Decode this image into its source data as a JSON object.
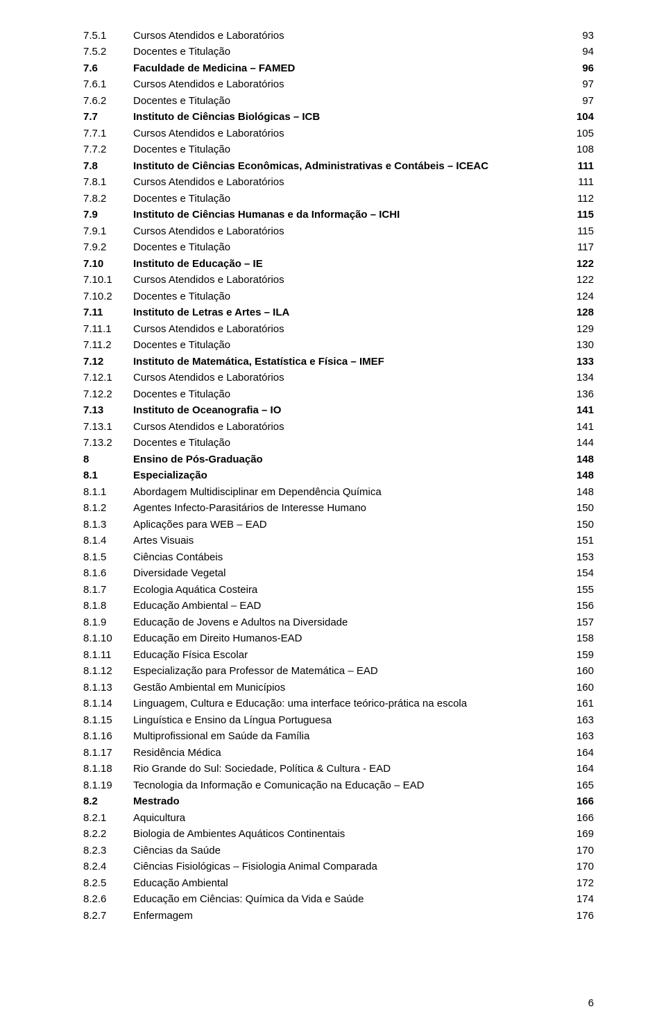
{
  "page_number": "6",
  "rows": [
    {
      "num": "7.5.1",
      "title": "Cursos Atendidos e Laboratórios",
      "pg": "93",
      "bold": false
    },
    {
      "num": "7.5.2",
      "title": "Docentes e Titulação",
      "pg": "94",
      "bold": false
    },
    {
      "num": "7.6",
      "title": "Faculdade de Medicina – FAMED",
      "pg": "96",
      "bold": true
    },
    {
      "num": "7.6.1",
      "title": "Cursos Atendidos e Laboratórios",
      "pg": "97",
      "bold": false
    },
    {
      "num": "7.6.2",
      "title": "Docentes e Titulação",
      "pg": "97",
      "bold": false
    },
    {
      "num": "7.7",
      "title": "Instituto de Ciências Biológicas – ICB",
      "pg": "104",
      "bold": true
    },
    {
      "num": "7.7.1",
      "title": "Cursos Atendidos e Laboratórios",
      "pg": "105",
      "bold": false
    },
    {
      "num": "7.7.2",
      "title": "Docentes e Titulação",
      "pg": "108",
      "bold": false
    },
    {
      "num": "7.8",
      "title": "Instituto de Ciências Econômicas, Administrativas e Contábeis – ICEAC",
      "pg": "111",
      "bold": true
    },
    {
      "num": "7.8.1",
      "title": "Cursos Atendidos e Laboratórios",
      "pg": "111",
      "bold": false
    },
    {
      "num": "7.8.2",
      "title": "Docentes e Titulação",
      "pg": "112",
      "bold": false
    },
    {
      "num": "7.9",
      "title": "Instituto de Ciências Humanas e da Informação – ICHI",
      "pg": "115",
      "bold": true
    },
    {
      "num": "7.9.1",
      "title": "Cursos Atendidos e Laboratórios",
      "pg": "115",
      "bold": false
    },
    {
      "num": "7.9.2",
      "title": "Docentes e Titulação",
      "pg": "117",
      "bold": false
    },
    {
      "num": "7.10",
      "title": "Instituto de Educação – IE",
      "pg": "122",
      "bold": true
    },
    {
      "num": "7.10.1",
      "title": "Cursos Atendidos e Laboratórios",
      "pg": "122",
      "bold": false
    },
    {
      "num": "7.10.2",
      "title": "Docentes e Titulação",
      "pg": "124",
      "bold": false
    },
    {
      "num": "7.11",
      "title": "Instituto de Letras e Artes – ILA",
      "pg": "128",
      "bold": true
    },
    {
      "num": "7.11.1",
      "title": "Cursos Atendidos e Laboratórios",
      "pg": "129",
      "bold": false
    },
    {
      "num": "7.11.2",
      "title": "Docentes e Titulação",
      "pg": "130",
      "bold": false
    },
    {
      "num": "7.12",
      "title": "Instituto de Matemática, Estatística e Física – IMEF",
      "pg": "133",
      "bold": true
    },
    {
      "num": "7.12.1",
      "title": "Cursos Atendidos e Laboratórios",
      "pg": "134",
      "bold": false
    },
    {
      "num": "7.12.2",
      "title": "Docentes e Titulação",
      "pg": "136",
      "bold": false
    },
    {
      "num": "7.13",
      "title": "Instituto de Oceanografia – IO",
      "pg": "141",
      "bold": true
    },
    {
      "num": "7.13.1",
      "title": "Cursos Atendidos e Laboratórios",
      "pg": "141",
      "bold": false
    },
    {
      "num": "7.13.2",
      "title": "Docentes e Titulação",
      "pg": "144",
      "bold": false
    },
    {
      "num": "8",
      "title": "Ensino de Pós-Graduação",
      "pg": "148",
      "bold": true
    },
    {
      "num": "8.1",
      "title": "Especialização",
      "pg": "148",
      "bold": true
    },
    {
      "num": "8.1.1",
      "title": "Abordagem Multidisciplinar em Dependência Química",
      "pg": "148",
      "bold": false
    },
    {
      "num": "8.1.2",
      "title": "Agentes Infecto-Parasitários de Interesse Humano",
      "pg": "150",
      "bold": false
    },
    {
      "num": "8.1.3",
      "title": "Aplicações para WEB – EAD",
      "pg": "150",
      "bold": false
    },
    {
      "num": "8.1.4",
      "title": "Artes Visuais",
      "pg": "151",
      "bold": false
    },
    {
      "num": "8.1.5",
      "title": "Ciências Contábeis",
      "pg": "153",
      "bold": false
    },
    {
      "num": "8.1.6",
      "title": "Diversidade Vegetal",
      "pg": "154",
      "bold": false
    },
    {
      "num": "8.1.7",
      "title": "Ecologia Aquática Costeira",
      "pg": "155",
      "bold": false
    },
    {
      "num": "8.1.8",
      "title": "Educação Ambiental – EAD",
      "pg": "156",
      "bold": false
    },
    {
      "num": "8.1.9",
      "title": "Educação de Jovens e Adultos na Diversidade",
      "pg": "157",
      "bold": false
    },
    {
      "num": "8.1.10",
      "title": "Educação em Direito Humanos-EAD",
      "pg": "158",
      "bold": false
    },
    {
      "num": "8.1.11",
      "title": "Educação Física Escolar",
      "pg": "159",
      "bold": false
    },
    {
      "num": "8.1.12",
      "title": "Especialização para Professor de Matemática – EAD",
      "pg": "160",
      "bold": false
    },
    {
      "num": "8.1.13",
      "title": "Gestão Ambiental em Municípios",
      "pg": "160",
      "bold": false
    },
    {
      "num": "8.1.14",
      "title": "Linguagem, Cultura e Educação: uma interface teórico-prática na escola",
      "pg": "161",
      "bold": false
    },
    {
      "num": "8.1.15",
      "title": "Linguística e Ensino da Língua Portuguesa",
      "pg": "163",
      "bold": false
    },
    {
      "num": "8.1.16",
      "title": "Multiprofissional em Saúde da Família",
      "pg": "163",
      "bold": false
    },
    {
      "num": "8.1.17",
      "title": "Residência Médica",
      "pg": "164",
      "bold": false
    },
    {
      "num": "8.1.18",
      "title": "Rio Grande do Sul: Sociedade, Política & Cultura - EAD",
      "pg": "164",
      "bold": false
    },
    {
      "num": "8.1.19",
      "title": "Tecnologia da Informação e Comunicação na Educação – EAD",
      "pg": "165",
      "bold": false
    },
    {
      "num": "8.2",
      "title": "Mestrado",
      "pg": "166",
      "bold": true
    },
    {
      "num": "8.2.1",
      "title": "Aquicultura",
      "pg": "166",
      "bold": false
    },
    {
      "num": "8.2.2",
      "title": "Biologia de Ambientes Aquáticos Continentais",
      "pg": "169",
      "bold": false
    },
    {
      "num": "8.2.3",
      "title": "Ciências da Saúde",
      "pg": "170",
      "bold": false
    },
    {
      "num": "8.2.4",
      "title": "Ciências Fisiológicas – Fisiologia Animal Comparada",
      "pg": "170",
      "bold": false
    },
    {
      "num": "8.2.5",
      "title": "Educação Ambiental",
      "pg": "172",
      "bold": false
    },
    {
      "num": "8.2.6",
      "title": "Educação em Ciências: Química da Vida e Saúde",
      "pg": "174",
      "bold": false
    },
    {
      "num": "8.2.7",
      "title": "Enfermagem",
      "pg": "176",
      "bold": false
    }
  ]
}
